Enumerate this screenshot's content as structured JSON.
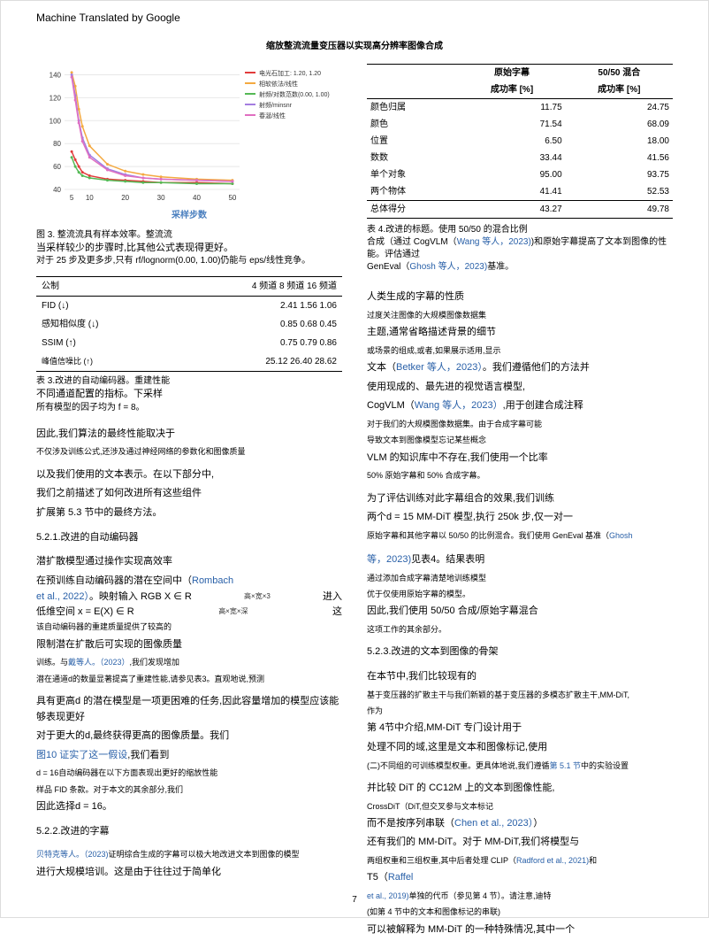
{
  "machine_translated": "Machine Translated by Google",
  "paper_title": "缩放整流流量变压器以实现高分辨率图像合成",
  "page_number": "7",
  "chart": {
    "type": "line",
    "xlabel": "采样步数",
    "x_ticks": [
      5,
      10,
      20,
      30,
      40,
      50
    ],
    "y_ticks": [
      40,
      60,
      80,
      100,
      120,
      140
    ],
    "ylim": [
      40,
      145
    ],
    "xlim": [
      3,
      52
    ],
    "legend": [
      {
        "label": "电光石加工: 1.20, 1.20",
        "color": "#e23b3b"
      },
      {
        "label": "相软依法/线性",
        "color": "#f4a940"
      },
      {
        "label": "射频/对数范数(0.00, 1.00)",
        "color": "#55b955"
      },
      {
        "label": "射频/minsnr",
        "color": "#a47de0"
      },
      {
        "label": "春涎/线性",
        "color": "#e06fc1"
      }
    ],
    "series_colors": [
      "#e23b3b",
      "#f4a940",
      "#55b955",
      "#a47de0",
      "#e06fc1"
    ],
    "series": [
      {
        "color": "#e23b3b",
        "points": [
          [
            5,
            73
          ],
          [
            6,
            66
          ],
          [
            7,
            60
          ],
          [
            8,
            55
          ],
          [
            10,
            52
          ],
          [
            15,
            49
          ],
          [
            20,
            48
          ],
          [
            25,
            47
          ],
          [
            30,
            46
          ],
          [
            40,
            46
          ],
          [
            50,
            45
          ]
        ]
      },
      {
        "color": "#f4a940",
        "points": [
          [
            5,
            142
          ],
          [
            6,
            130
          ],
          [
            7,
            110
          ],
          [
            8,
            95
          ],
          [
            10,
            78
          ],
          [
            15,
            62
          ],
          [
            20,
            56
          ],
          [
            25,
            53
          ],
          [
            30,
            51
          ],
          [
            40,
            49
          ],
          [
            50,
            48
          ]
        ]
      },
      {
        "color": "#55b955",
        "points": [
          [
            5,
            68
          ],
          [
            6,
            60
          ],
          [
            7,
            55
          ],
          [
            8,
            52
          ],
          [
            10,
            50
          ],
          [
            15,
            48
          ],
          [
            20,
            47
          ],
          [
            25,
            46
          ],
          [
            30,
            46
          ],
          [
            40,
            45
          ],
          [
            50,
            45
          ]
        ]
      },
      {
        "color": "#a47de0",
        "points": [
          [
            5,
            140
          ],
          [
            6,
            122
          ],
          [
            7,
            100
          ],
          [
            8,
            85
          ],
          [
            10,
            70
          ],
          [
            15,
            58
          ],
          [
            20,
            53
          ],
          [
            25,
            50
          ],
          [
            30,
            49
          ],
          [
            40,
            48
          ],
          [
            50,
            47
          ]
        ]
      },
      {
        "color": "#e06fc1",
        "points": [
          [
            5,
            138
          ],
          [
            6,
            118
          ],
          [
            7,
            98
          ],
          [
            8,
            82
          ],
          [
            10,
            68
          ],
          [
            15,
            57
          ],
          [
            20,
            52
          ],
          [
            25,
            50
          ],
          [
            30,
            49
          ],
          [
            40,
            48
          ],
          [
            50,
            47
          ]
        ]
      }
    ],
    "grid_color": "#e8e8e8",
    "background": "#ffffff",
    "line_width": 1.5
  },
  "fig3_caption_1": "图 3. 整流流具有样本效率。整流流",
  "fig3_caption_2": "当采样较少的步骤时,比其他公式表现得更好。",
  "fig3_caption_3": "对于 25 步及更多步,只有 rf/lognorm(0.00, 1.00)仍能与 eps/线性竞争。",
  "table3": {
    "headers": [
      "公制",
      "4 频道 8 频道 16 频道"
    ],
    "rows": [
      [
        "FID (↓)",
        "2.41 1.56 1.06"
      ],
      [
        "感知相似度 (↓)",
        "0.85 0.68 0.45"
      ],
      [
        "SSIM (↑)",
        "0.75 0.79 0.86"
      ],
      [
        "峰值信噪比 (↑)",
        "25.12 26.40 28.62"
      ]
    ]
  },
  "tab3_caption_1": "表 3.改进的自动编码器。重建性能",
  "tab3_caption_2": "不同通道配置的指标。下采样",
  "tab3_caption_3": "所有模型的因子均为 f = 8。",
  "left_para_1": "因此,我们算法的最终性能取决于",
  "left_para_2": "不仅涉及训练公式,还涉及通过神经网络的参数化和图像质量",
  "left_para_3": "以及我们使用的文本表示。在以下部分中,",
  "left_para_4": "我们之前描述了如何改进所有这些组件",
  "left_para_5": "扩展第 5.3 节中的最终方法。",
  "sec_521": "5.2.1.改进的自动编码器",
  "left_521_1": "潜扩散模型通过操作实现高效率",
  "left_521_2a": "在预训练自动编码器的潜在空间中（",
  "left_521_2_link": "Rombach",
  "left_521_3_link": "et al., 2022）",
  "left_521_3b": "。映射输入 RGB X ∈ R",
  "annot_hw3": "高×宽×3",
  "annot_enter": "进入",
  "left_521_4": "低维空间 x = E(X) ∈ R",
  "annot_hwd": "高×宽×深",
  "annot_this": "这",
  "left_521_5": "该自动编码器的重建质量提供了较高的",
  "left_521_6": "限制潜在扩散后可实现的图像质量",
  "left_521_7a": "训练。与",
  "left_521_7_link": "戴等人。（2023）",
  "left_521_7b": ",我们发现增加",
  "left_521_8": "潜在通道d的数量显著提高了重建性能,请参见表3。直观地说,预测",
  "left_521_9": "具有更高d 的潜在模型是一项更困难的任务,因此容量增加的模型应该能够表现更好",
  "left_521_10": "对于更大的d,最终获得更高的图像质量。我们",
  "left_521_11_link": "图10 证实了这一假设",
  "left_521_11b": ",我们看到",
  "left_521_12": "d = 16自动编码器在以下方面表现出更好的缩放性能",
  "left_521_13": "样品 FID 条款。对于本文的其余部分,我们",
  "left_521_14": "因此选择d = 16。",
  "sec_522": "5.2.2.改进的字幕",
  "left_522_1_link": "贝特克等人。（2023)",
  "left_522_1b": "证明综合生成的字幕可以极大地改进文本到图像的模型",
  "left_522_2": "进行大规模培训。这是由于往往过于简单化",
  "table4": {
    "col_h1": "原始字幕",
    "col_h2": "50/50 混合",
    "sub_h": "成功率 [%]",
    "rows": [
      [
        "颜色归属",
        "11.75",
        "24.75"
      ],
      [
        "颜色",
        "71.54",
        "68.09"
      ],
      [
        "位置",
        "6.50",
        "18.00"
      ],
      [
        "数数",
        "33.44",
        "41.56"
      ],
      [
        "单个对象",
        "95.00",
        "93.75"
      ],
      [
        "两个物体",
        "41.41",
        "52.53"
      ]
    ],
    "total": [
      "总体得分",
      "43.27",
      "49.78"
    ]
  },
  "tab4_caption_1": "表 4.改进的标题。使用 50/50 的混合比例",
  "tab4_caption_2a": "合成（通过 CogVLM（",
  "tab4_caption_2_link": "Wang 等人，2023)",
  "tab4_caption_2b": ")和原始字幕提高了文本到图像的性能。评估通过",
  "tab4_caption_3a": "GenEval（",
  "tab4_caption_3_link": "Ghosh 等人，2023)",
  "tab4_caption_3b": "基准。",
  "right_p1": "人类生成的字幕的性质",
  "right_p2": "过度关注图像的大规模图像数据集",
  "right_p3": "主题,通常省略描述背景的细节",
  "right_p4": "或场景的组成,或者,如果展示适用,显示",
  "right_p5a": "文本（",
  "right_p5_link": "Betker 等人，2023）",
  "right_p5b": "。我们遵循他们的方法并",
  "right_p6": "使用现成的、最先进的视觉语言模型,",
  "right_p7a": "CogVLM（",
  "right_p7_link": "Wang 等人，2023）",
  "right_p7b": ",用于创建合成注释",
  "right_p8": "对于我们的大规模图像数据集。由于合成字幕可能",
  "right_p9": "导致文本到图像模型忘记某些概念",
  "right_p10": "VLM 的知识库中不存在,我们使用一个比率",
  "right_p11": "50% 原始字幕和 50% 合成字幕。",
  "right_p12": "为了评估训练对此字幕组合的效果,我们训练",
  "right_p13": "两个d = 15 MM-DiT 模型,执行 250k 步,仅一对一",
  "right_p14a": "原始字幕和其他字幕以 50/50 的比例混合。我们使用 GenEval 基准（",
  "right_p14_link": "Ghosh",
  "right_p15_link": "等，2023)",
  "right_p15b": "见表4。结果表明",
  "right_p16": "通过添加合成字幕清楚地训练模型",
  "right_p17": "优于仅使用原始字幕的模型。",
  "right_p18": "因此,我们使用 50/50 合成/原始字幕混合",
  "right_p19": "这项工作的其余部分。",
  "sec_523": "5.2.3.改进的文本到图像的骨架",
  "right_523_1": "在本节中,我们比较现有的",
  "right_523_2": "基于变压器的扩散主干与我们新颖的基于变压器的多模态扩散主干,MM-DiT,",
  "right_523_3": "作为",
  "right_523_4": "第 4节中介绍,MM-DiT 专门设计用于",
  "right_523_5": "处理不同的域,这里是文本和图像标记,使用",
  "right_523_6a": "(二)不同组的可训练模型权重。更具体地说,我们遵循",
  "right_523_6_link": "第 5.1 节",
  "right_523_6b": "中的实验设置",
  "right_523_7": "并比较 DiT 的 CC12M 上的文本到图像性能,",
  "right_523_8": "CrossDiT（DiT,但交叉参与文本标记",
  "right_523_9a": "而不是按序列串联（",
  "right_523_9_link": "Chen et al., 2023）",
  "right_523_9b": "）",
  "right_523_10": "还有我们的 MM-DiT。对于 MM-DiT,我们将模型与",
  "right_523_11a": "两组权重和三组权重,其中后者处理 CLIP（",
  "right_523_11_link": "Radford et al., 2021)",
  "right_523_11b": "和",
  "right_523_12a": "T5（",
  "right_523_12_link": "Raffel",
  "right_523_13_link": "et al., 2019)",
  "right_523_13b": "单独的代币（参见第 4 节）。请注意,迪特",
  "right_523_14": "(如第 4 节中的文本和图像标记的串联)",
  "right_523_15": "可以被解释为 MM-DiT 的一种特殊情况,其中一个"
}
